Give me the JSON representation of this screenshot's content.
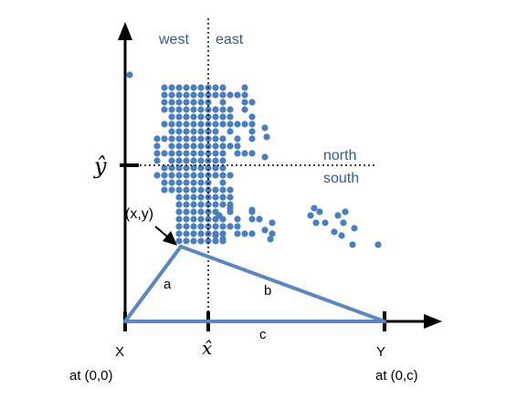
{
  "labels": {
    "west": "west",
    "east": "east",
    "north": "north",
    "south": "south",
    "y_hat": "ŷ",
    "x_hat": "x̂",
    "point": "(x,y)",
    "side_a": "a",
    "side_b": "b",
    "side_c": "c",
    "X": "X",
    "X_at": "at (0,0)",
    "Y": "Y",
    "Y_at": "at (0,c)"
  },
  "colors": {
    "points": "#4a7ec1",
    "triangle": "#5b86c4",
    "quadrant_text": "#2f5d9e",
    "axes": "#000000"
  },
  "diagram": {
    "point_count_hint": "scatter of ~200 points"
  }
}
